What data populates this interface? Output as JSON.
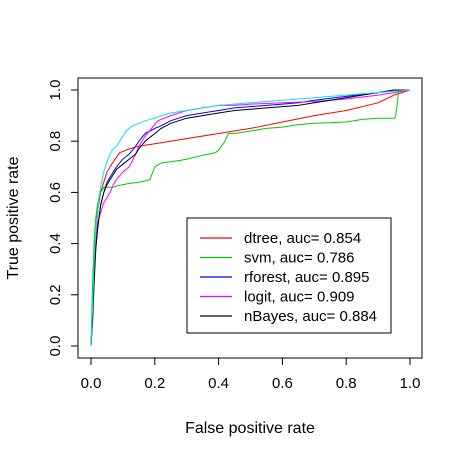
{
  "chart_data": {
    "type": "line",
    "title": "",
    "xlabel": "False positive rate",
    "ylabel": "True positive rate",
    "xlim": [
      0,
      1
    ],
    "ylim": [
      0,
      1
    ],
    "x_ticks": [
      "0.0",
      "0.2",
      "0.4",
      "0.6",
      "0.8",
      "1.0"
    ],
    "y_ticks": [
      "0.0",
      "0.2",
      "0.4",
      "0.6",
      "0.8",
      "1.0"
    ],
    "grid": false,
    "legend_position": "bottom-right",
    "legend": [
      "dtree, auc= 0.854",
      "svm, auc= 0.786",
      "rforest, auc= 0.895",
      "logit, auc= 0.909",
      "nBayes, auc= 0.884"
    ],
    "series": [
      {
        "name": "dtree",
        "color": "#ff0000",
        "x": [
          0,
          0.01,
          0.02,
          0.03,
          0.05,
          0.07,
          0.09,
          0.12,
          0.15,
          0.2,
          0.3,
          0.4,
          0.5,
          0.6,
          0.7,
          0.8,
          0.9,
          0.95,
          1.0
        ],
        "y": [
          0,
          0.35,
          0.52,
          0.6,
          0.68,
          0.72,
          0.755,
          0.77,
          0.78,
          0.79,
          0.81,
          0.83,
          0.85,
          0.875,
          0.9,
          0.92,
          0.95,
          0.98,
          1.0
        ]
      },
      {
        "name": "svm",
        "color": "#00cd00",
        "x": [
          0,
          0.005,
          0.01,
          0.015,
          0.02,
          0.025,
          0.03,
          0.04,
          0.05,
          0.06,
          0.07,
          0.08,
          0.1,
          0.12,
          0.15,
          0.17,
          0.185,
          0.2,
          0.22,
          0.25,
          0.28,
          0.3,
          0.35,
          0.39,
          0.4,
          0.42,
          0.43,
          0.45,
          0.5,
          0.55,
          0.6,
          0.65,
          0.7,
          0.8,
          0.85,
          0.9,
          0.95,
          0.955,
          0.965,
          1.0
        ],
        "y": [
          0,
          0.25,
          0.42,
          0.5,
          0.55,
          0.58,
          0.6,
          0.62,
          0.62,
          0.62,
          0.62,
          0.625,
          0.63,
          0.635,
          0.64,
          0.645,
          0.65,
          0.7,
          0.715,
          0.72,
          0.725,
          0.73,
          0.745,
          0.755,
          0.765,
          0.8,
          0.83,
          0.83,
          0.84,
          0.85,
          0.855,
          0.865,
          0.87,
          0.875,
          0.885,
          0.89,
          0.89,
          0.895,
          1.0,
          1.0
        ]
      },
      {
        "name": "rforest",
        "color": "#0000ff",
        "x": [
          0,
          0.005,
          0.01,
          0.015,
          0.02,
          0.03,
          0.04,
          0.05,
          0.06,
          0.07,
          0.08,
          0.1,
          0.12,
          0.14,
          0.15,
          0.17,
          0.2,
          0.22,
          0.25,
          0.3,
          0.35,
          0.4,
          0.45,
          0.5,
          0.55,
          0.6,
          0.65,
          0.7,
          0.8,
          0.9,
          0.95,
          1.0
        ],
        "y": [
          0,
          0.12,
          0.32,
          0.38,
          0.45,
          0.55,
          0.6,
          0.64,
          0.66,
          0.68,
          0.7,
          0.73,
          0.75,
          0.78,
          0.8,
          0.83,
          0.85,
          0.86,
          0.88,
          0.9,
          0.91,
          0.92,
          0.93,
          0.935,
          0.94,
          0.945,
          0.95,
          0.96,
          0.975,
          0.99,
          1.0,
          1.0
        ]
      },
      {
        "name": "logit",
        "color": "#ff00ff",
        "x": [
          0,
          0.005,
          0.01,
          0.015,
          0.02,
          0.03,
          0.04,
          0.05,
          0.06,
          0.07,
          0.08,
          0.1,
          0.12,
          0.14,
          0.15,
          0.17,
          0.19,
          0.21,
          0.25,
          0.3,
          0.35,
          0.4,
          0.45,
          0.5,
          0.6,
          0.7,
          0.8,
          0.9,
          0.95,
          1.0
        ],
        "y": [
          0,
          0.1,
          0.3,
          0.4,
          0.48,
          0.52,
          0.56,
          0.58,
          0.6,
          0.63,
          0.65,
          0.68,
          0.7,
          0.75,
          0.78,
          0.82,
          0.85,
          0.88,
          0.9,
          0.92,
          0.93,
          0.94,
          0.94,
          0.945,
          0.95,
          0.955,
          0.965,
          0.98,
          0.99,
          1.0
        ]
      },
      {
        "name": "nBayes",
        "color": "#000000",
        "x": [
          0,
          0.005,
          0.01,
          0.015,
          0.02,
          0.03,
          0.04,
          0.05,
          0.06,
          0.07,
          0.08,
          0.1,
          0.12,
          0.14,
          0.15,
          0.17,
          0.2,
          0.22,
          0.25,
          0.3,
          0.35,
          0.4,
          0.45,
          0.5,
          0.55,
          0.6,
          0.65,
          0.7,
          0.75,
          0.8,
          0.85,
          0.9,
          0.95,
          1.0
        ],
        "y": [
          0,
          0.1,
          0.25,
          0.38,
          0.45,
          0.55,
          0.6,
          0.63,
          0.65,
          0.67,
          0.69,
          0.71,
          0.73,
          0.75,
          0.77,
          0.8,
          0.83,
          0.85,
          0.87,
          0.89,
          0.9,
          0.91,
          0.92,
          0.925,
          0.93,
          0.935,
          0.94,
          0.95,
          0.96,
          0.97,
          0.98,
          0.99,
          1.0,
          1.0
        ]
      },
      {
        "name": "",
        "color": "#00e5ee",
        "x": [
          0,
          0.005,
          0.01,
          0.015,
          0.02,
          0.025,
          0.03,
          0.04,
          0.05,
          0.06,
          0.07,
          0.08,
          0.09,
          0.1,
          0.11,
          0.12,
          0.13,
          0.15,
          0.17,
          0.2,
          0.22,
          0.25,
          0.3,
          0.35,
          0.4,
          0.45,
          0.5,
          0.55,
          0.6,
          0.65,
          0.7,
          0.75,
          0.8,
          0.85,
          0.9,
          0.95,
          1.0
        ],
        "y": [
          0,
          0.15,
          0.35,
          0.45,
          0.5,
          0.58,
          0.62,
          0.68,
          0.72,
          0.75,
          0.77,
          0.78,
          0.8,
          0.82,
          0.84,
          0.85,
          0.86,
          0.87,
          0.88,
          0.89,
          0.9,
          0.91,
          0.92,
          0.93,
          0.94,
          0.945,
          0.95,
          0.955,
          0.96,
          0.965,
          0.97,
          0.975,
          0.98,
          0.985,
          0.99,
          0.995,
          1.0
        ]
      }
    ]
  }
}
